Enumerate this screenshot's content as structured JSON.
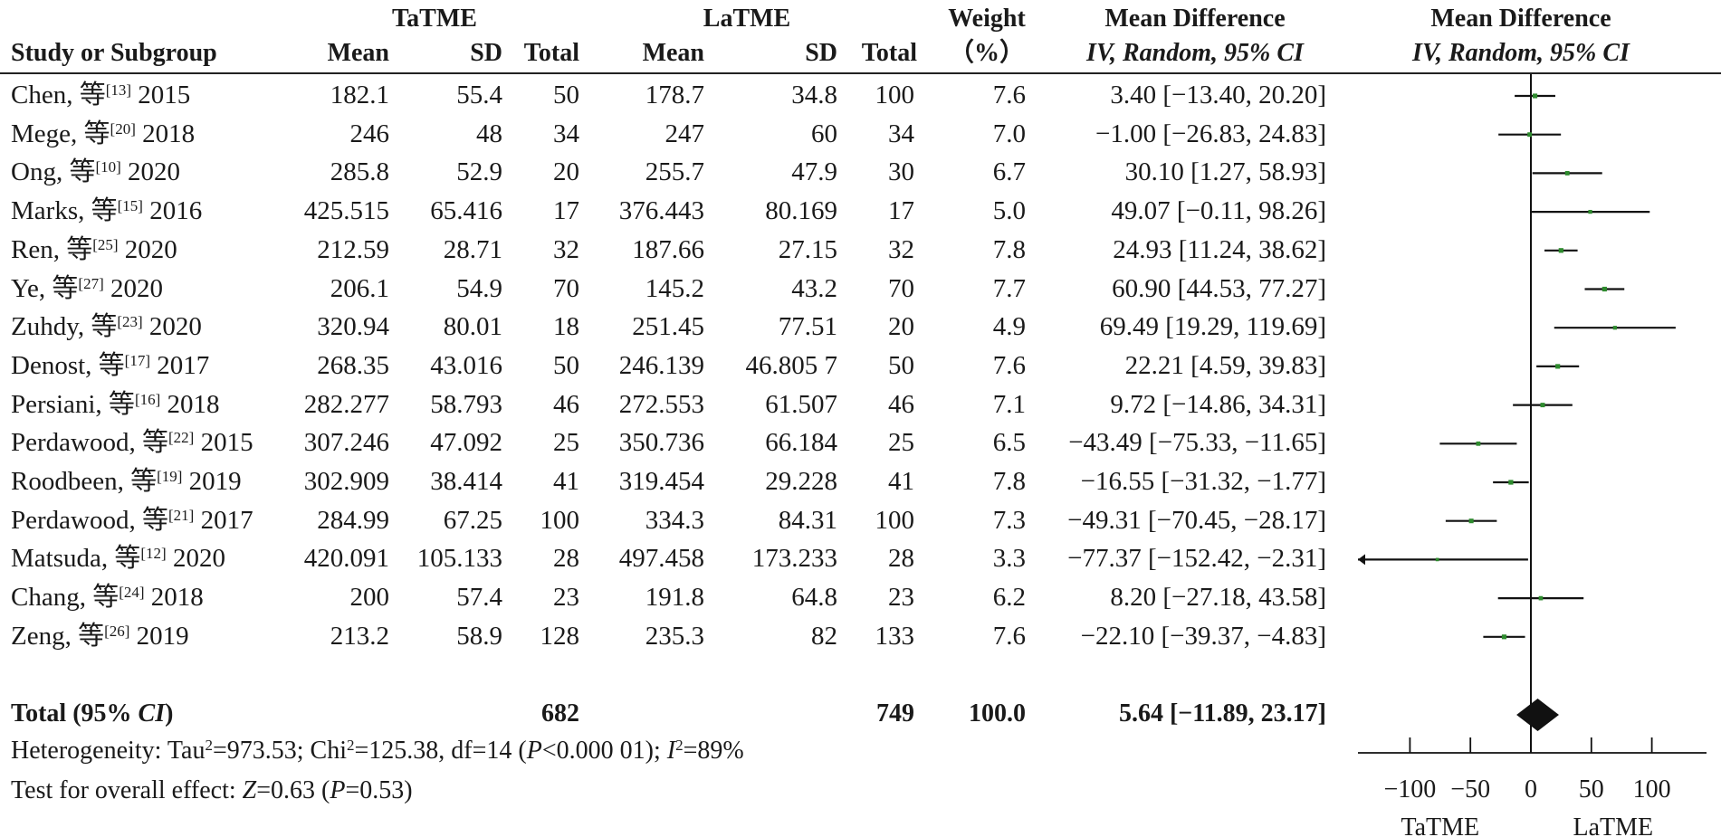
{
  "headers": {
    "group1": "TaTME",
    "group2": "LaTME",
    "study": "Study or Subgroup",
    "mean": "Mean",
    "sd": "SD",
    "total": "Total",
    "weight1": "Weight",
    "weight2": "（%）",
    "md_title": "Mean Difference",
    "md_method": "IV, Random, 95% CI",
    "plot_title": "Mean Difference",
    "plot_method": "IV, Random, 95% CI"
  },
  "studies": [
    {
      "author": "Chen, 等",
      "ref": "[13]",
      "year": "2015",
      "m1": "182.1",
      "sd1": "55.4",
      "n1": "50",
      "m2": "178.7",
      "sd2": "34.8",
      "n2": "100",
      "weight": "7.6",
      "ci": "3.40 [−13.40, 20.20]"
    },
    {
      "author": "Mege, 等",
      "ref": "[20]",
      "year": "2018",
      "m1": "246",
      "sd1": "48",
      "n1": "34",
      "m2": "247",
      "sd2": "60",
      "n2": "34",
      "weight": "7.0",
      "ci": "−1.00 [−26.83, 24.83]"
    },
    {
      "author": "Ong, 等",
      "ref": "[10]",
      "year": "2020",
      "m1": "285.8",
      "sd1": "52.9",
      "n1": "20",
      "m2": "255.7",
      "sd2": "47.9",
      "n2": "30",
      "weight": "6.7",
      "ci": "30.10 [1.27, 58.93]"
    },
    {
      "author": "Marks, 等",
      "ref": "[15]",
      "year": "2016",
      "m1": "425.515",
      "sd1": "65.416",
      "n1": "17",
      "m2": "376.443",
      "sd2": "80.169",
      "n2": "17",
      "weight": "5.0",
      "ci": "49.07 [−0.11, 98.26]"
    },
    {
      "author": "Ren, 等",
      "ref": "[25]",
      "year": "2020",
      "m1": "212.59",
      "sd1": "28.71",
      "n1": "32",
      "m2": "187.66",
      "sd2": "27.15",
      "n2": "32",
      "weight": "7.8",
      "ci": "24.93 [11.24, 38.62]"
    },
    {
      "author": "Ye, 等",
      "ref": "[27]",
      "year": "2020",
      "m1": "206.1",
      "sd1": "54.9",
      "n1": "70",
      "m2": "145.2",
      "sd2": "43.2",
      "n2": "70",
      "weight": "7.7",
      "ci": "60.90 [44.53, 77.27]"
    },
    {
      "author": "Zuhdy, 等",
      "ref": "[23]",
      "year": "2020",
      "m1": "320.94",
      "sd1": "80.01",
      "n1": "18",
      "m2": "251.45",
      "sd2": "77.51",
      "n2": "20",
      "weight": "4.9",
      "ci": "69.49 [19.29, 119.69]"
    },
    {
      "author": "Denost, 等",
      "ref": "[17]",
      "year": "2017",
      "m1": "268.35",
      "sd1": "43.016",
      "n1": "50",
      "m2": "246.139",
      "sd2": "46.805 7",
      "n2": "50",
      "weight": "7.6",
      "ci": "22.21 [4.59, 39.83]"
    },
    {
      "author": "Persiani, 等",
      "ref": "[16]",
      "year": "2018",
      "m1": "282.277",
      "sd1": "58.793",
      "n1": "46",
      "m2": "272.553",
      "sd2": "61.507",
      "n2": "46",
      "weight": "7.1",
      "ci": "9.72 [−14.86, 34.31]"
    },
    {
      "author": "Perdawood, 等",
      "ref": "[22]",
      "year": "2015",
      "m1": "307.246",
      "sd1": "47.092",
      "n1": "25",
      "m2": "350.736",
      "sd2": "66.184",
      "n2": "25",
      "weight": "6.5",
      "ci": "−43.49 [−75.33, −11.65]"
    },
    {
      "author": "Roodbeen, 等",
      "ref": "[19]",
      "year": "2019",
      "m1": "302.909",
      "sd1": "38.414",
      "n1": "41",
      "m2": "319.454",
      "sd2": "29.228",
      "n2": "41",
      "weight": "7.8",
      "ci": "−16.55 [−31.32, −1.77]"
    },
    {
      "author": "Perdawood, 等",
      "ref": "[21]",
      "year": "2017",
      "m1": "284.99",
      "sd1": "67.25",
      "n1": "100",
      "m2": "334.3",
      "sd2": "84.31",
      "n2": "100",
      "weight": "7.3",
      "ci": "−49.31 [−70.45, −28.17]"
    },
    {
      "author": "Matsuda, 等",
      "ref": "[12]",
      "year": "2020",
      "m1": "420.091",
      "sd1": "105.133",
      "n1": "28",
      "m2": "497.458",
      "sd2": "173.233",
      "n2": "28",
      "weight": "3.3",
      "ci": "−77.37 [−152.42, −2.31]"
    },
    {
      "author": "Chang, 等",
      "ref": "[24]",
      "year": "2018",
      "m1": "200",
      "sd1": "57.4",
      "n1": "23",
      "m2": "191.8",
      "sd2": "64.8",
      "n2": "23",
      "weight": "6.2",
      "ci": "8.20 [−27.18, 43.58]"
    },
    {
      "author": "Zeng, 等",
      "ref": "[26]",
      "year": "2019",
      "m1": "213.2",
      "sd1": "58.9",
      "n1": "128",
      "m2": "235.3",
      "sd2": "82",
      "n2": "133",
      "weight": "7.6",
      "ci": "−22.10 [−39.37, −4.83]"
    }
  ],
  "total": {
    "label_pre": "Total (95% ",
    "label_ci": "CI",
    "label_post": ")",
    "n1": "682",
    "n2": "749",
    "weight": "100.0",
    "ci": "5.64 [−11.89, 23.17]"
  },
  "heterogeneity": {
    "pre": "Heterogeneity: Tau",
    "sup_a": "2",
    "mid1": "=973.53; Chi",
    "sup_b": "2",
    "mid2": "=125.38, df=14 (",
    "p_var": "P",
    "mid3": "<0.000 01); ",
    "i_var": "I",
    "sup_c": "2",
    "post": "=89%"
  },
  "overall_effect": {
    "pre": "Test for overall effect: ",
    "z_var": "Z",
    "mid": "=0.63 (",
    "p_var": "P",
    "post": "=0.53)"
  },
  "chart_data": {
    "type": "forest",
    "title": "Mean Difference",
    "subtitle": "IV, Random, 95% CI",
    "xlim": [
      -145,
      145
    ],
    "xticks": [
      -100,
      -50,
      0,
      50,
      100
    ],
    "xtick_labels": [
      "−100",
      "−50",
      "0",
      "50",
      "100"
    ],
    "favours_left": "TaTME",
    "favours_right": "LaTME",
    "marker_color": "#2e8b2e",
    "points": [
      {
        "est": 3.4,
        "lo": -13.4,
        "hi": 20.2,
        "weight": 7.6
      },
      {
        "est": -1.0,
        "lo": -26.83,
        "hi": 24.83,
        "weight": 7.0
      },
      {
        "est": 30.1,
        "lo": 1.27,
        "hi": 58.93,
        "weight": 6.7
      },
      {
        "est": 49.07,
        "lo": -0.11,
        "hi": 98.26,
        "weight": 5.0
      },
      {
        "est": 24.93,
        "lo": 11.24,
        "hi": 38.62,
        "weight": 7.8
      },
      {
        "est": 60.9,
        "lo": 44.53,
        "hi": 77.27,
        "weight": 7.7
      },
      {
        "est": 69.49,
        "lo": 19.29,
        "hi": 119.69,
        "weight": 4.9
      },
      {
        "est": 22.21,
        "lo": 4.59,
        "hi": 39.83,
        "weight": 7.6
      },
      {
        "est": 9.72,
        "lo": -14.86,
        "hi": 34.31,
        "weight": 7.1
      },
      {
        "est": -43.49,
        "lo": -75.33,
        "hi": -11.65,
        "weight": 6.5
      },
      {
        "est": -16.55,
        "lo": -31.32,
        "hi": -1.77,
        "weight": 7.8
      },
      {
        "est": -49.31,
        "lo": -70.45,
        "hi": -28.17,
        "weight": 7.3
      },
      {
        "est": -77.37,
        "lo": -152.42,
        "hi": -2.31,
        "weight": 3.3
      },
      {
        "est": 8.2,
        "lo": -27.18,
        "hi": 43.58,
        "weight": 6.2
      },
      {
        "est": -22.1,
        "lo": -39.37,
        "hi": -4.83,
        "weight": 7.6
      }
    ],
    "pooled": {
      "est": 5.64,
      "lo": -11.89,
      "hi": 23.17
    }
  }
}
